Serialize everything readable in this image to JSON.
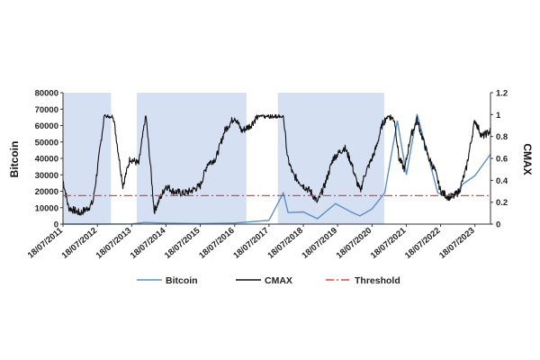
{
  "chart_data": {
    "type": "line",
    "title": "",
    "xlabel": "",
    "ylabel_left": "Bitcoin",
    "ylabel_right": "CMAX",
    "x_tick_labels": [
      "18/07/2011",
      "18/07/2012",
      "18/07/2013",
      "18/07/2014",
      "18/07/2015",
      "18/07/2016",
      "18/07/2017",
      "18/07/2018",
      "18/07/2019",
      "18/07/2020",
      "18/07/2021",
      "18/07/2022",
      "18/07/2023"
    ],
    "xlim": [
      "2011-07-18",
      "2023-12-31"
    ],
    "y_left_ticks": [
      "0",
      "10000",
      "20000",
      "30000",
      "40000",
      "50000",
      "60000",
      "70000",
      "80000"
    ],
    "y_right_ticks": [
      "0",
      "0.2",
      "0.4",
      "0.6",
      "0.8",
      "1",
      "1.2"
    ],
    "ylim_left": [
      0,
      80000
    ],
    "ylim_right": [
      0,
      1.2
    ],
    "grid": false,
    "legend_position": "bottom",
    "shaded_periods": [
      {
        "start": "2011-07-18",
        "end": "2012-12-10"
      },
      {
        "start": "2013-09-10",
        "end": "2016-11-20"
      },
      {
        "start": "2017-10-20",
        "end": "2020-11-25"
      }
    ],
    "series": [
      {
        "name": "Bitcoin",
        "axis": "left",
        "color": "#5b8fc7",
        "style": "solid",
        "x": [
          "2011-07-18",
          "2012-07-18",
          "2013-07-18",
          "2013-12-01",
          "2014-07-18",
          "2015-07-18",
          "2016-07-18",
          "2017-07-18",
          "2017-12-17",
          "2018-02-06",
          "2018-07-18",
          "2018-12-15",
          "2019-06-26",
          "2019-12-15",
          "2020-03-12",
          "2020-07-18",
          "2020-12-01",
          "2021-04-14",
          "2021-07-20",
          "2021-11-10",
          "2022-06-18",
          "2022-11-21",
          "2023-03-15",
          "2023-07-18",
          "2023-12-31"
        ],
        "y": [
          14,
          8,
          90,
          1000,
          620,
          280,
          660,
          2300,
          19000,
          7000,
          7400,
          3300,
          12500,
          7200,
          5000,
          9200,
          19000,
          63000,
          30000,
          67000,
          19000,
          16000,
          24500,
          29500,
          42500
        ]
      },
      {
        "name": "CMAX",
        "axis": "right",
        "color": "#111111",
        "style": "solid",
        "x": [
          "2011-07-18",
          "2011-09-15",
          "2012-01-15",
          "2012-04-15",
          "2012-06-01",
          "2012-07-18",
          "2012-10-01",
          "2013-01-01",
          "2013-04-15",
          "2013-07-01",
          "2013-10-01",
          "2013-12-15",
          "2014-02-01",
          "2014-03-15",
          "2014-07-18",
          "2014-10-01",
          "2015-01-15",
          "2015-04-01",
          "2015-07-18",
          "2015-10-01",
          "2016-01-01",
          "2016-04-01",
          "2016-07-18",
          "2016-10-01",
          "2017-01-01",
          "2017-04-01",
          "2017-07-18",
          "2017-10-01",
          "2017-12-17",
          "2018-02-01",
          "2018-04-01",
          "2018-07-18",
          "2018-10-01",
          "2018-12-15",
          "2019-03-01",
          "2019-06-01",
          "2019-08-01",
          "2019-10-01",
          "2019-12-15",
          "2020-02-01",
          "2020-03-15",
          "2020-05-01",
          "2020-07-18",
          "2020-09-01",
          "2020-11-01",
          "2021-01-01",
          "2021-03-15",
          "2021-05-01",
          "2021-07-01",
          "2021-09-01",
          "2021-11-10",
          "2022-01-01",
          "2022-03-15",
          "2022-05-15",
          "2022-07-18",
          "2022-10-01",
          "2022-12-01",
          "2023-02-01",
          "2023-04-15",
          "2023-07-18",
          "2023-10-01",
          "2023-12-31"
        ],
        "y": [
          0.4,
          0.15,
          0.1,
          0.15,
          0.2,
          0.5,
          1.0,
          1.0,
          0.35,
          0.6,
          0.55,
          1.0,
          0.55,
          0.12,
          0.35,
          0.3,
          0.28,
          0.3,
          0.35,
          0.55,
          0.6,
          0.85,
          0.98,
          0.85,
          0.9,
          1.0,
          1.0,
          1.0,
          1.0,
          0.6,
          0.45,
          0.35,
          0.3,
          0.2,
          0.35,
          0.6,
          0.65,
          0.7,
          0.55,
          0.4,
          0.3,
          0.45,
          0.6,
          0.7,
          0.9,
          1.0,
          0.95,
          0.6,
          0.5,
          0.8,
          0.95,
          0.8,
          0.6,
          0.5,
          0.3,
          0.25,
          0.25,
          0.3,
          0.5,
          0.95,
          0.8,
          0.85
        ]
      },
      {
        "name": "Threshold",
        "axis": "right",
        "color": "#e8423f",
        "style": "dash-dot",
        "x": [
          "2011-07-18",
          "2023-12-31"
        ],
        "y": [
          0.26,
          0.26
        ]
      }
    ],
    "legend": [
      "Bitcoin",
      "CMAX",
      "Threshold"
    ]
  }
}
